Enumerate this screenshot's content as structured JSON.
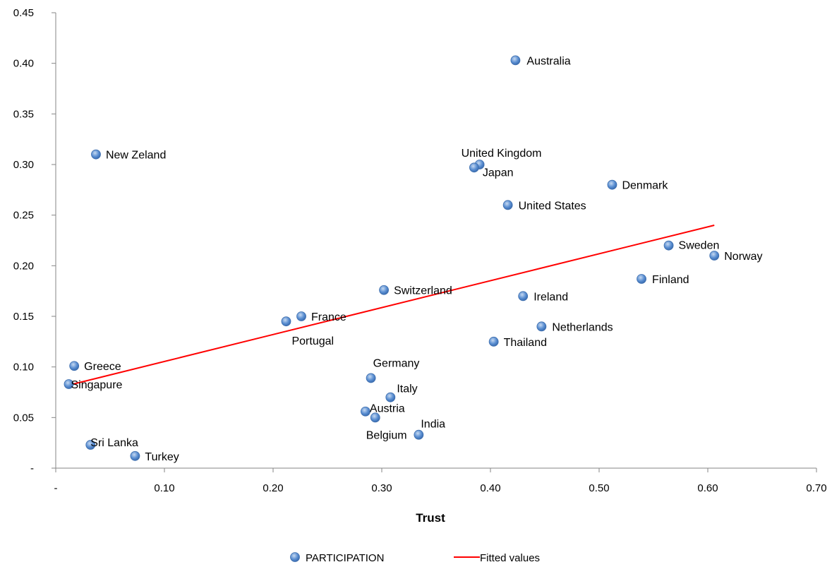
{
  "chart_data": {
    "type": "scatter",
    "title": "",
    "xlabel": "Trust",
    "ylabel": "",
    "xlim": [
      0,
      0.7
    ],
    "ylim": [
      0,
      0.45
    ],
    "x_ticks": [
      "-",
      "0.10",
      "0.20",
      "0.30",
      "0.40",
      "0.50",
      "0.60",
      "0.70"
    ],
    "y_ticks": [
      "-",
      "0.05",
      "0.10",
      "0.15",
      "0.20",
      "0.25",
      "0.30",
      "0.35",
      "0.40",
      "0.45"
    ],
    "grid": false,
    "legend_position": "bottom",
    "series": [
      {
        "name": "PARTICIPATION",
        "kind": "scatter",
        "color": "#4f81bd",
        "points": [
          {
            "label": "Australia",
            "x": 0.423,
            "y": 0.403
          },
          {
            "label": "New Zeland",
            "x": 0.037,
            "y": 0.31
          },
          {
            "label": "United Kingdom",
            "x": 0.39,
            "y": 0.3
          },
          {
            "label": "Japan",
            "x": 0.385,
            "y": 0.297
          },
          {
            "label": "Denmark",
            "x": 0.512,
            "y": 0.28
          },
          {
            "label": "United States",
            "x": 0.416,
            "y": 0.26
          },
          {
            "label": "Sweden",
            "x": 0.564,
            "y": 0.22
          },
          {
            "label": "Norway",
            "x": 0.606,
            "y": 0.21
          },
          {
            "label": "Finland",
            "x": 0.539,
            "y": 0.187
          },
          {
            "label": "Switzerland",
            "x": 0.302,
            "y": 0.176
          },
          {
            "label": "Ireland",
            "x": 0.43,
            "y": 0.17
          },
          {
            "label": "France",
            "x": 0.226,
            "y": 0.15
          },
          {
            "label": "Portugal",
            "x": 0.212,
            "y": 0.145
          },
          {
            "label": "Netherlands",
            "x": 0.447,
            "y": 0.14
          },
          {
            "label": "Thailand",
            "x": 0.403,
            "y": 0.125
          },
          {
            "label": "Greece",
            "x": 0.017,
            "y": 0.101
          },
          {
            "label": "Germany",
            "x": 0.29,
            "y": 0.089
          },
          {
            "label": "Singapure",
            "x": 0.012,
            "y": 0.083
          },
          {
            "label": "Italy",
            "x": 0.308,
            "y": 0.07
          },
          {
            "label": "Austria",
            "x": 0.285,
            "y": 0.056
          },
          {
            "label": "Belgium",
            "x": 0.294,
            "y": 0.05
          },
          {
            "label": "India",
            "x": 0.334,
            "y": 0.033
          },
          {
            "label": "Sri Lanka",
            "x": 0.032,
            "y": 0.023
          },
          {
            "label": "Turkey",
            "x": 0.073,
            "y": 0.012
          }
        ]
      },
      {
        "name": "Fitted values",
        "kind": "line",
        "color": "#ff0000",
        "points": [
          {
            "x": 0.012,
            "y": 0.082
          },
          {
            "x": 0.606,
            "y": 0.24
          }
        ]
      }
    ]
  }
}
